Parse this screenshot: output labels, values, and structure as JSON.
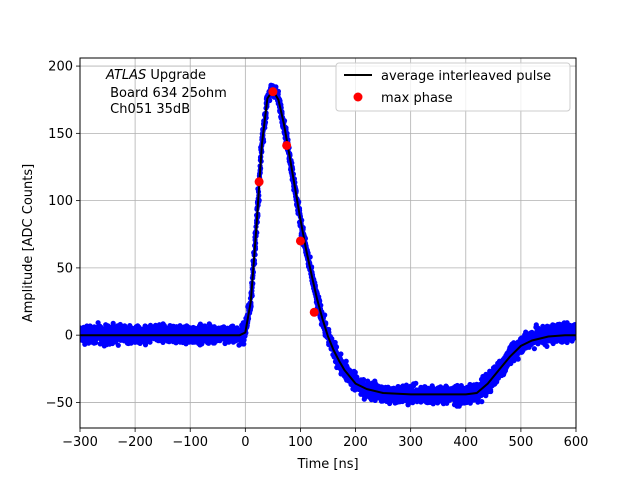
{
  "chart_data": {
    "type": "scatter",
    "xlabel": "Time [ns]",
    "ylabel": "Amplitude [ADC Counts]",
    "xlim": [
      -300,
      600
    ],
    "ylim": [
      -69,
      206
    ],
    "xticks": [
      -300,
      -200,
      -100,
      0,
      100,
      200,
      300,
      400,
      500,
      600
    ],
    "yticks": [
      -50,
      0,
      50,
      100,
      150,
      200
    ],
    "grid": true,
    "legend_position": "top-right",
    "annotation": {
      "line1_italic": "ATLAS",
      "line1_rest": " Upgrade",
      "line2": " Board 634 25ohm",
      "line3": " Ch051 35dB"
    },
    "series": [
      {
        "name": "",
        "kind": "scatter-band",
        "color": "#0000ff",
        "x": [
          -300,
          -200,
          -100,
          -10,
          0,
          10,
          20,
          30,
          40,
          50,
          60,
          70,
          80,
          90,
          100,
          110,
          120,
          130,
          140,
          150,
          160,
          170,
          180,
          200,
          220,
          250,
          300,
          350,
          400,
          420,
          440,
          460,
          480,
          500,
          520,
          550,
          580,
          600
        ],
        "y_min": [
          -9,
          -9,
          -9,
          -9,
          -7,
          15,
          65,
          130,
          168,
          176,
          168,
          148,
          125,
          100,
          76,
          55,
          36,
          18,
          3,
          -10,
          -20,
          -28,
          -35,
          -45,
          -50,
          -53,
          -54,
          -54,
          -54,
          -53,
          -46,
          -37,
          -26,
          -17,
          -12,
          -9,
          -8,
          -8
        ],
        "y_max": [
          10,
          10,
          10,
          10,
          12,
          38,
          95,
          155,
          183,
          191,
          183,
          165,
          143,
          118,
          94,
          73,
          54,
          36,
          21,
          9,
          -1,
          -10,
          -16,
          -26,
          -31,
          -34,
          -35,
          -35,
          -35,
          -33,
          -26,
          -17,
          -6,
          3,
          8,
          11,
          12,
          12
        ]
      },
      {
        "name": "average interleaved pulse",
        "kind": "line",
        "color": "#000000",
        "x": [
          -300,
          -200,
          -100,
          -10,
          0,
          10,
          20,
          30,
          40,
          50,
          60,
          70,
          80,
          90,
          100,
          110,
          120,
          130,
          140,
          150,
          160,
          170,
          180,
          200,
          220,
          250,
          300,
          350,
          400,
          420,
          440,
          460,
          480,
          500,
          520,
          550,
          580,
          600
        ],
        "y": [
          0,
          0,
          0,
          0,
          2,
          25,
          80,
          142,
          176,
          182,
          175,
          157,
          134,
          110,
          86,
          64,
          45,
          27,
          12,
          -1,
          -11,
          -19,
          -26,
          -36,
          -40,
          -43,
          -44,
          -44,
          -44,
          -43,
          -36,
          -26,
          -16,
          -8,
          -4,
          -1,
          0,
          0
        ]
      },
      {
        "name": "max phase",
        "kind": "markers",
        "color": "#ff0000",
        "x": [
          25,
          50,
          75,
          100,
          125
        ],
        "y": [
          114,
          181,
          141,
          70,
          17
        ]
      }
    ]
  }
}
